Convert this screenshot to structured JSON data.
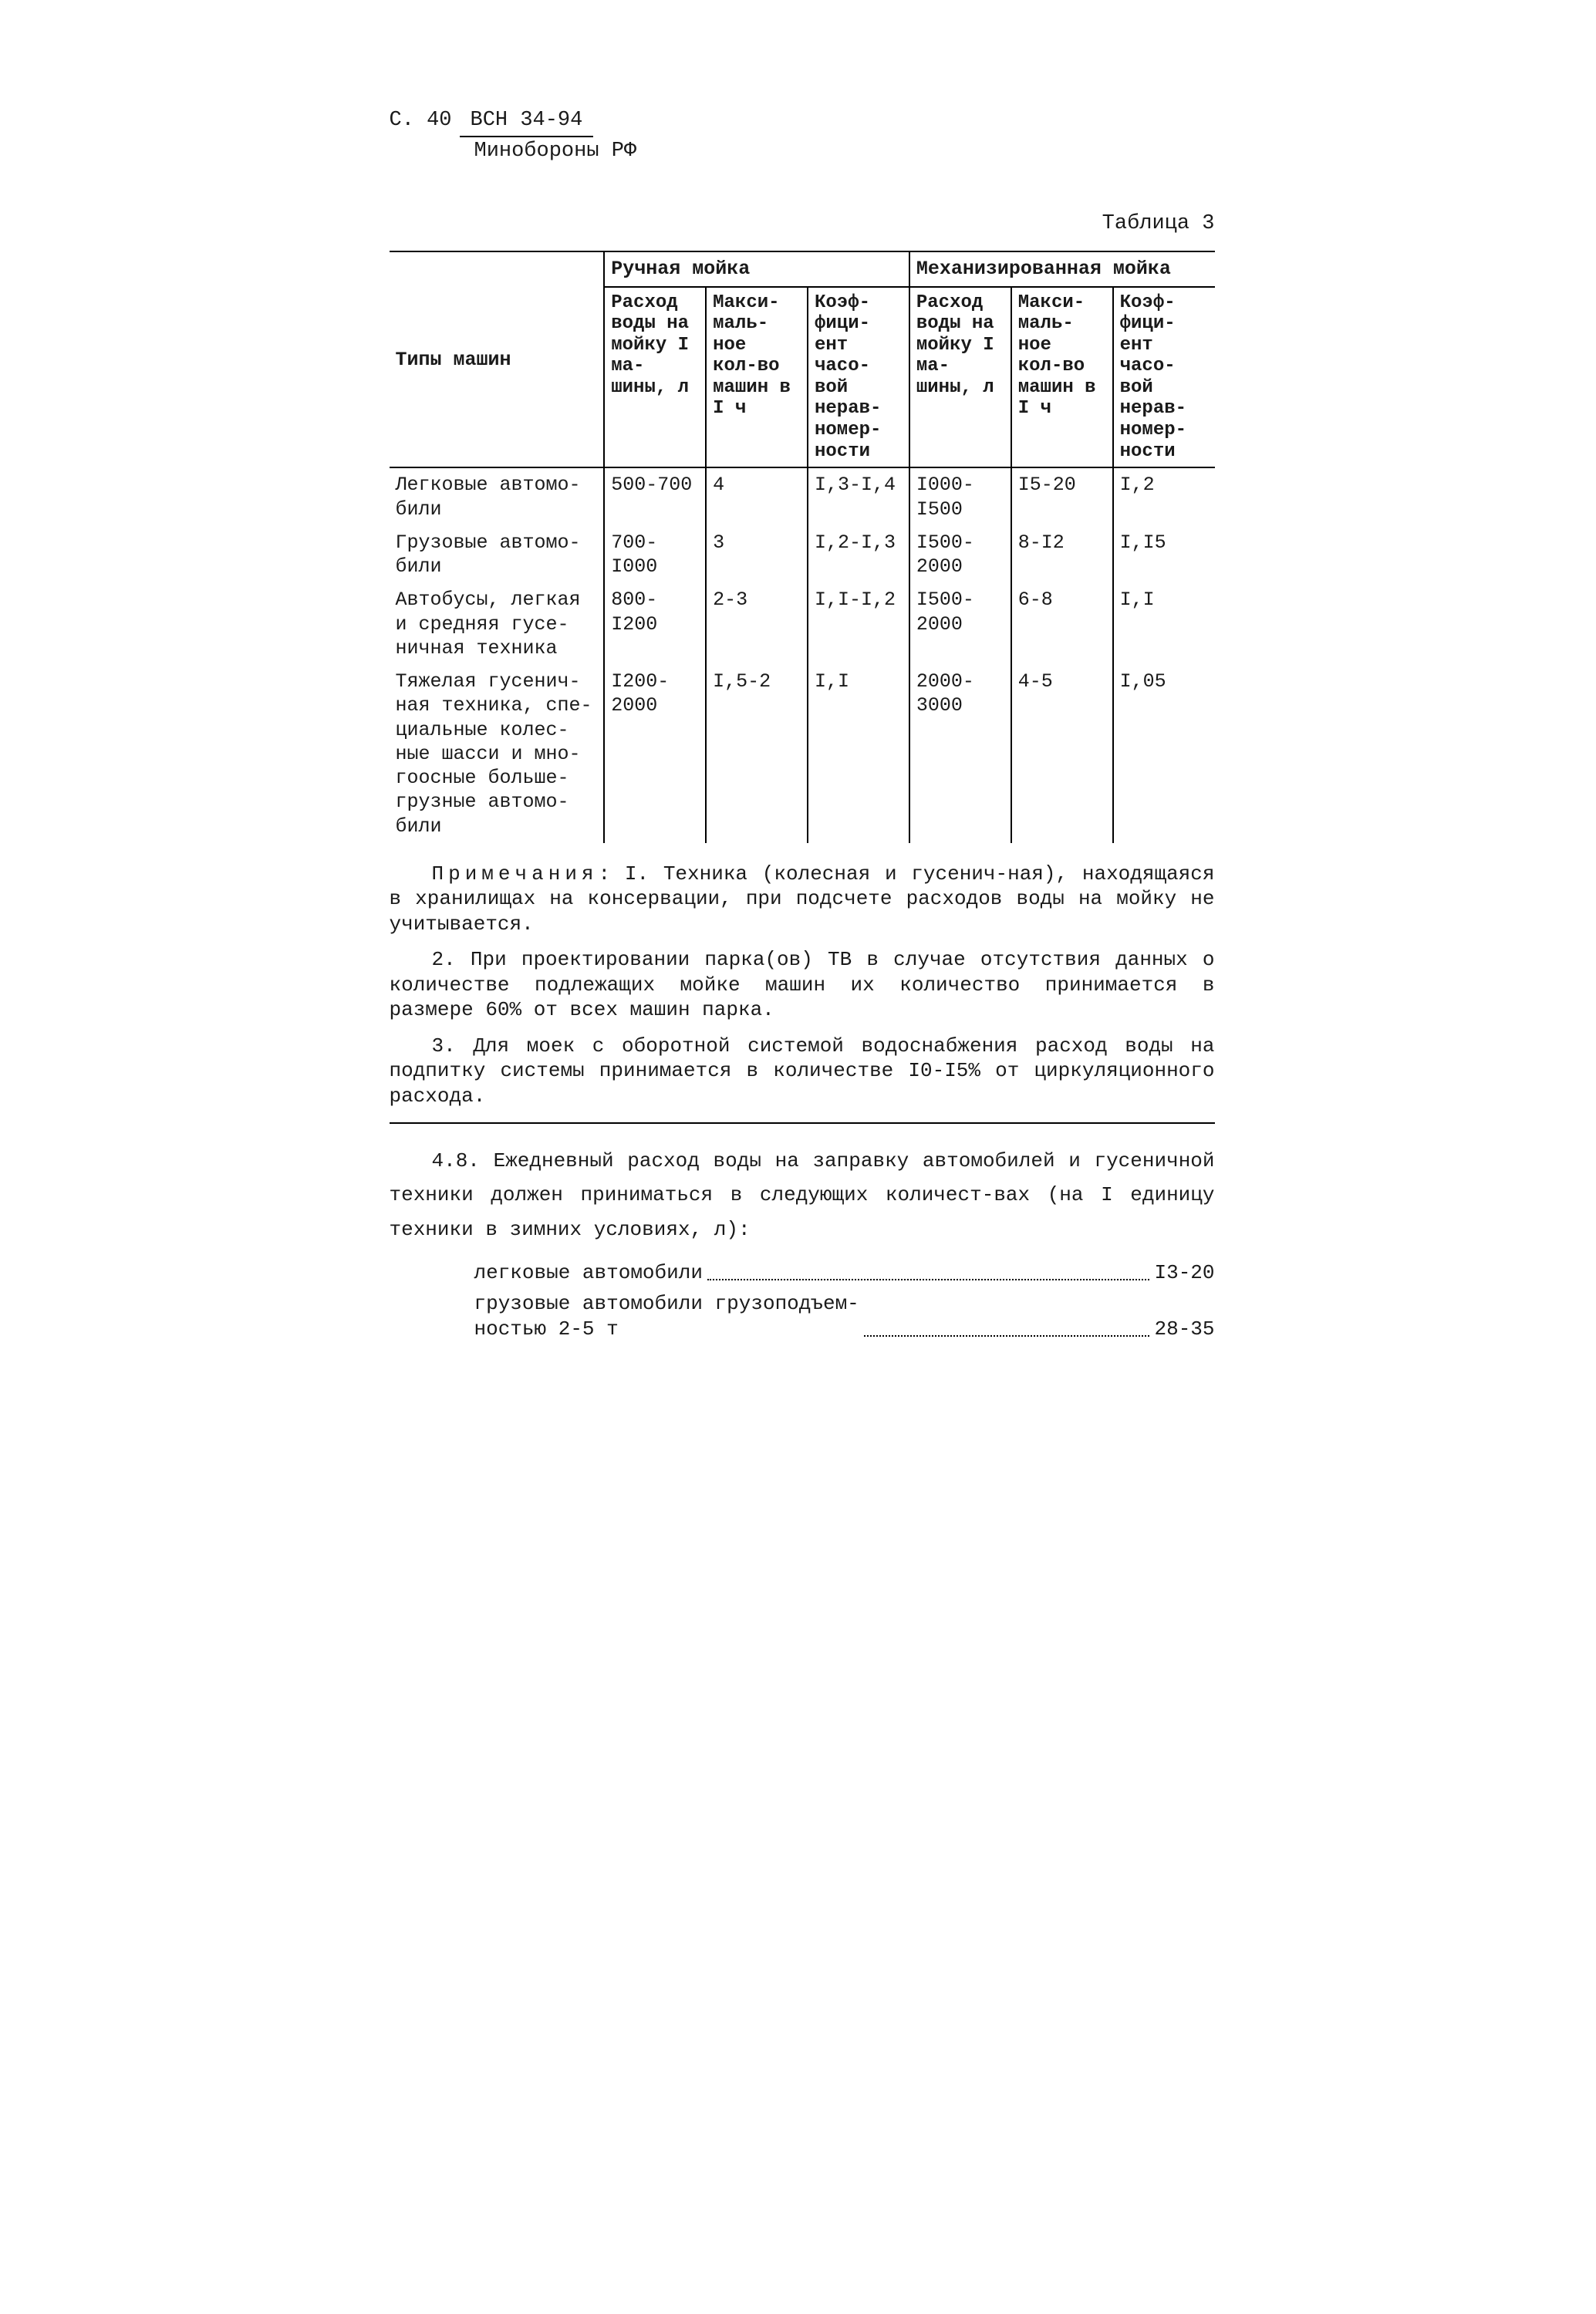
{
  "header": {
    "page_prefix": "С. 40",
    "doc_code": "ВСН 34-94",
    "org": "Минобороны РФ"
  },
  "table": {
    "caption": "Таблица 3",
    "col_types_label": "Типы машин",
    "group1_label": "Ручная мойка",
    "group2_label": "Механизированная мойка",
    "sub_labels": {
      "water": "Расход воды на мойку I ма-шины, л",
      "max": "Макси-маль-ное кол-во машин в I ч",
      "coef": "Коэф-фици-ент часо-вой нерав-номер-ности"
    },
    "rows": [
      {
        "type": "Легковые автомо-били",
        "m_water": "500-700",
        "m_max": "4",
        "m_coef": "I,3-I,4",
        "a_water": "I000-I500",
        "a_max": "I5-20",
        "a_coef": "I,2"
      },
      {
        "type": "Грузовые автомо-били",
        "m_water": "700-I000",
        "m_max": "3",
        "m_coef": "I,2-I,3",
        "a_water": "I500-2000",
        "a_max": "8-I2",
        "a_coef": "I,I5"
      },
      {
        "type": "Автобусы, легкая и средняя гусе-ничная техника",
        "m_water": "800-I200",
        "m_max": "2-3",
        "m_coef": "I,I-I,2",
        "a_water": "I500-2000",
        "a_max": "6-8",
        "a_coef": "I,I"
      },
      {
        "type": "Тяжелая гусенич-ная техника, спе-циальные колес-ные шасси и мно-гоосные больше-грузные автомо-били",
        "m_water": "I200-2000",
        "m_max": "I,5-2",
        "m_coef": "I,I",
        "a_water": "2000-3000",
        "a_max": "4-5",
        "a_coef": "I,05"
      }
    ]
  },
  "notes": {
    "lead_word": "Примечания",
    "n1_rest": ": I. Техника (колесная и гусенич-ная), находящаяся в хранилищах на консервации, при подсчете расходов воды на мойку не учитывается.",
    "n2": "2. При проектировании парка(ов) ТВ в случае отсутствия данных о количестве подлежащих мойке машин их количество принимается в размере 60% от всех машин парка.",
    "n3": "3. Для моек с оборотной системой водоснабжения расход воды на подпитку системы принимается в количестве I0-I5% от циркуляционного расхода."
  },
  "clause": "4.8. Ежедневный расход воды на заправку автомобилей и гусеничной техники должен приниматься в следующих количест-вах (на I единицу техники в зимних условиях, л):",
  "list": [
    {
      "label": "легковые автомобили",
      "value": "I3-20"
    },
    {
      "label": "грузовые автомобили грузоподъем-\nностью 2-5 т",
      "value": "28-35"
    }
  ]
}
